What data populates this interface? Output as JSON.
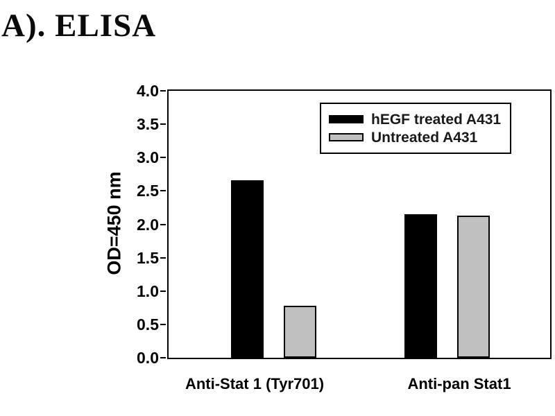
{
  "figure": {
    "title": "A). ELISA"
  },
  "chart_data": {
    "type": "bar",
    "title": "",
    "xlabel": "",
    "ylabel": "OD=450 nm",
    "categories": [
      "Anti-Stat 1 (Tyr701)",
      "Anti-pan Stat1"
    ],
    "series": [
      {
        "name": "hEGF treated A431",
        "color": "#000000",
        "values": [
          2.66,
          2.15
        ]
      },
      {
        "name": "Untreated A431",
        "color": "#c0c0c0",
        "values": [
          0.78,
          2.13
        ]
      }
    ],
    "ylim": [
      0.0,
      4.0
    ],
    "ytick_step": 0.5,
    "ytick_labels": [
      "0.0",
      "0.5",
      "1.0",
      "1.5",
      "2.0",
      "2.5",
      "3.0",
      "3.5",
      "4.0"
    ],
    "grid": false,
    "legend_position": "top-right-inside",
    "axis_color": "#000000",
    "background_color": "#ffffff"
  }
}
